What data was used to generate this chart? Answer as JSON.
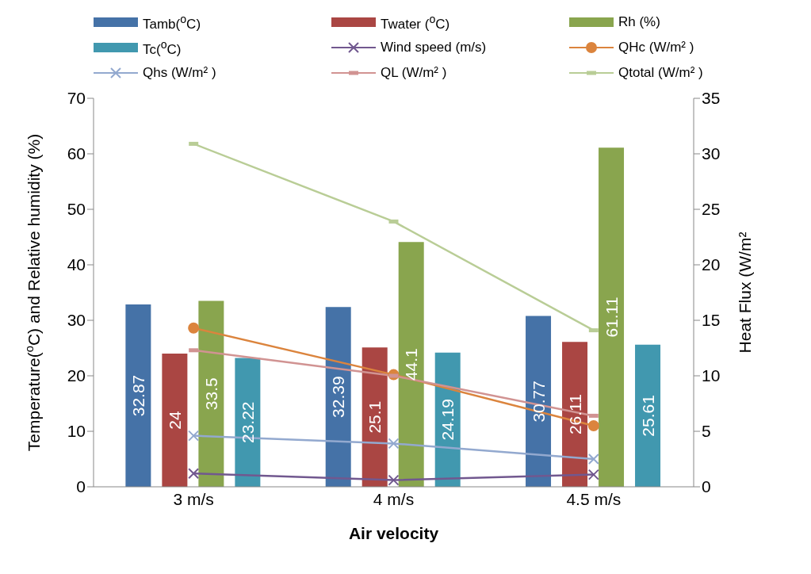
{
  "chart_data": {
    "type": "bar",
    "xlabel": "Air velocity",
    "ylabel": "Temperature($^{o}$C)  and Relative humidity (%)",
    "y2label": "Heat Flux (W/m²",
    "categories": [
      "3 m/s",
      "4 m/s",
      "4.5 m/s"
    ],
    "ylim": [
      0,
      70
    ],
    "yticks": [
      0,
      10,
      20,
      30,
      40,
      50,
      60,
      70
    ],
    "y2lim": [
      0,
      35
    ],
    "y2ticks": [
      0,
      5,
      10,
      15,
      20,
      25,
      30,
      35
    ],
    "grid": false,
    "legend": "top",
    "series": [
      {
        "name": "Tamb($^{o}$C)",
        "color": "#4572a7",
        "values": [
          32.87,
          32.39,
          30.77
        ],
        "data_labels": true
      },
      {
        "name": "Twater ($^{o}$C)",
        "color": "#aa4643",
        "values": [
          24,
          25.1,
          26.11
        ],
        "data_labels": true
      },
      {
        "name": "Rh (%)",
        "color": "#89a54e",
        "values": [
          33.5,
          44.1,
          61.11
        ],
        "data_labels": true
      },
      {
        "name": "Tc($^{o}$C)",
        "color": "#4198af",
        "values": [
          23.22,
          24.19,
          25.61
        ],
        "data_labels": true
      },
      {
        "name": "Wind speed (m/s)",
        "type": "line",
        "axis": "y2",
        "color": "#71588f",
        "marker": "cross",
        "values": [
          1.2,
          0.6,
          1.1
        ]
      },
      {
        "name": "QHc (W/m² )",
        "type": "line",
        "axis": "y2",
        "color": "#db843d",
        "marker": "circle",
        "values": [
          14.3,
          10.1,
          5.5
        ]
      },
      {
        "name": "Qhs (W/m² )",
        "type": "line",
        "axis": "y2",
        "color": "#93a9cf",
        "marker": "cross",
        "values": [
          4.6,
          3.9,
          2.5
        ]
      },
      {
        "name": "QL (W/m² )",
        "type": "line",
        "axis": "y2",
        "color": "#d19392",
        "marker": "square",
        "values": [
          12.3,
          10,
          6.4
        ]
      },
      {
        "name": "Qtotal (W/m² )",
        "type": "line",
        "axis": "y2",
        "color": "#b9cd96",
        "marker": "square",
        "values": [
          30.9,
          23.9,
          14.1
        ]
      }
    ]
  }
}
